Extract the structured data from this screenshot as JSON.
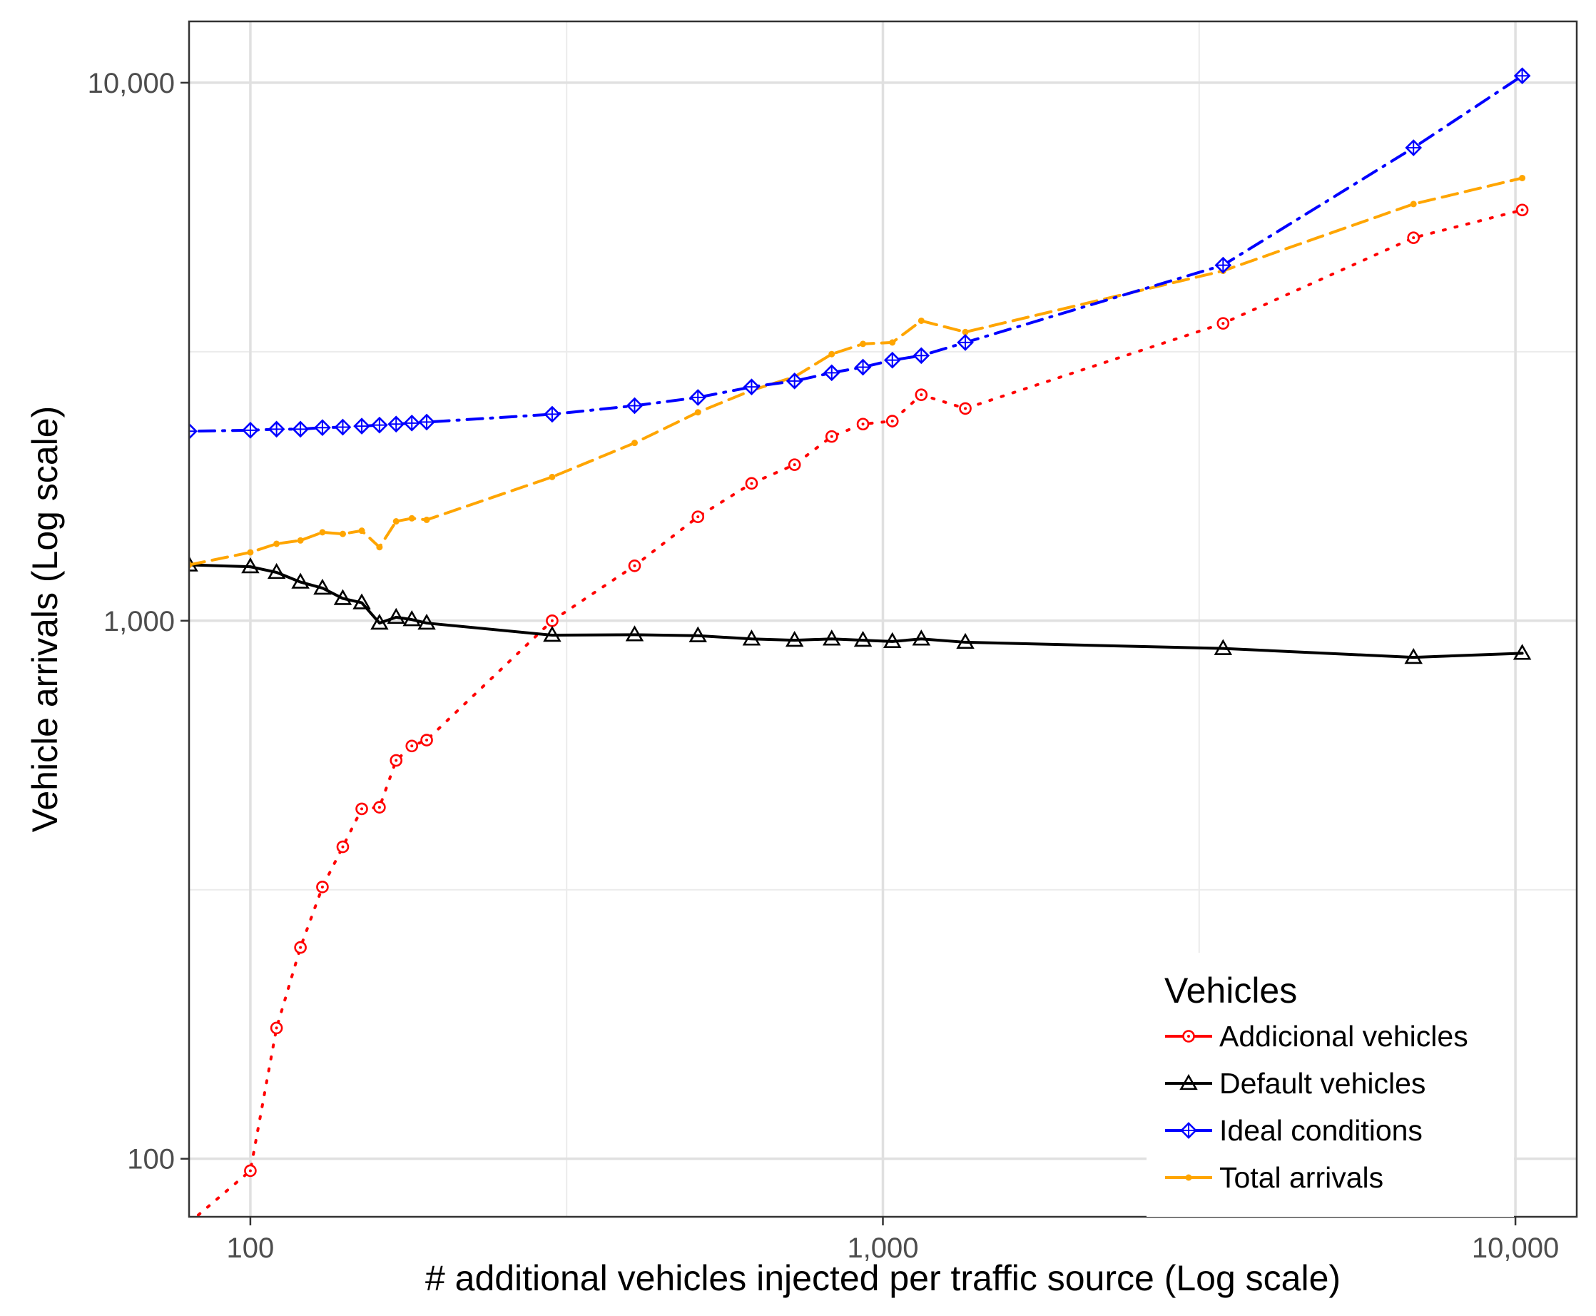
{
  "chart_data": {
    "type": "line",
    "title": "",
    "xlabel": "# additional vehicles injected per traffic source (Log scale)",
    "ylabel": "Vehicle arrivals (Log scale)",
    "x_scale": "log",
    "y_scale": "log",
    "xlim": [
      80,
      12500
    ],
    "ylim": [
      78,
      13000
    ],
    "x_ticks": [
      {
        "value": 100,
        "label": "100"
      },
      {
        "value": 1000,
        "label": "1,000"
      },
      {
        "value": 10000,
        "label": "10,000"
      }
    ],
    "y_ticks": [
      {
        "value": 100,
        "label": "100"
      },
      {
        "value": 1000,
        "label": "1,000"
      },
      {
        "value": 10000,
        "label": "10,000"
      }
    ],
    "grid": true,
    "legend": {
      "title": "Vehicles",
      "position": "bottom-right"
    },
    "series": [
      {
        "name": "Addicional vehicles",
        "color": "#ff0000",
        "line": "dotted",
        "marker": "circle-dot",
        "x": [
          80,
          100,
          110,
          120,
          130,
          140,
          150,
          160,
          170,
          180,
          190,
          300,
          405,
          510,
          620,
          725,
          830,
          930,
          1035,
          1150,
          1350,
          3450,
          6900,
          10250
        ],
        "y": [
          76,
          95,
          175,
          247,
          320,
          380,
          447,
          450,
          550,
          585,
          600,
          1000,
          1265,
          1560,
          1800,
          1950,
          2200,
          2320,
          2350,
          2630,
          2480,
          3570,
          5150,
          5800
        ]
      },
      {
        "name": "Default vehicles",
        "color": "#000000",
        "line": "solid",
        "marker": "triangle-open",
        "x": [
          80,
          100,
          110,
          120,
          130,
          140,
          150,
          160,
          170,
          180,
          190,
          300,
          405,
          510,
          620,
          725,
          830,
          930,
          1035,
          1150,
          1350,
          3450,
          6900,
          10250
        ],
        "y": [
          1270,
          1260,
          1230,
          1180,
          1150,
          1100,
          1080,
          990,
          1015,
          1005,
          990,
          940,
          942,
          938,
          925,
          920,
          925,
          920,
          915,
          925,
          912,
          888,
          855,
          870
        ]
      },
      {
        "name": "Ideal conditions",
        "color": "#0000ff",
        "line": "dotdash",
        "marker": "diamond-plus",
        "x": [
          80,
          100,
          110,
          120,
          130,
          140,
          150,
          160,
          170,
          180,
          190,
          300,
          405,
          510,
          620,
          725,
          830,
          930,
          1035,
          1150,
          1350,
          3450,
          6900,
          10250
        ],
        "y": [
          2250,
          2260,
          2270,
          2270,
          2285,
          2290,
          2300,
          2310,
          2320,
          2330,
          2340,
          2420,
          2510,
          2600,
          2720,
          2790,
          2890,
          2960,
          3050,
          3110,
          3290,
          4580,
          7570,
          10300
        ]
      },
      {
        "name": "Total arrivals",
        "color": "#ffa500",
        "line": "dashed",
        "marker": "point",
        "x": [
          80,
          100,
          110,
          120,
          130,
          140,
          150,
          160,
          170,
          180,
          190,
          300,
          405,
          510,
          620,
          725,
          830,
          930,
          1035,
          1150,
          1350,
          3450,
          6900,
          10250
        ],
        "y": [
          1270,
          1340,
          1390,
          1410,
          1460,
          1450,
          1470,
          1370,
          1530,
          1550,
          1540,
          1850,
          2140,
          2440,
          2680,
          2840,
          3130,
          3270,
          3290,
          3610,
          3440,
          4470,
          5950,
          6650
        ]
      }
    ]
  }
}
